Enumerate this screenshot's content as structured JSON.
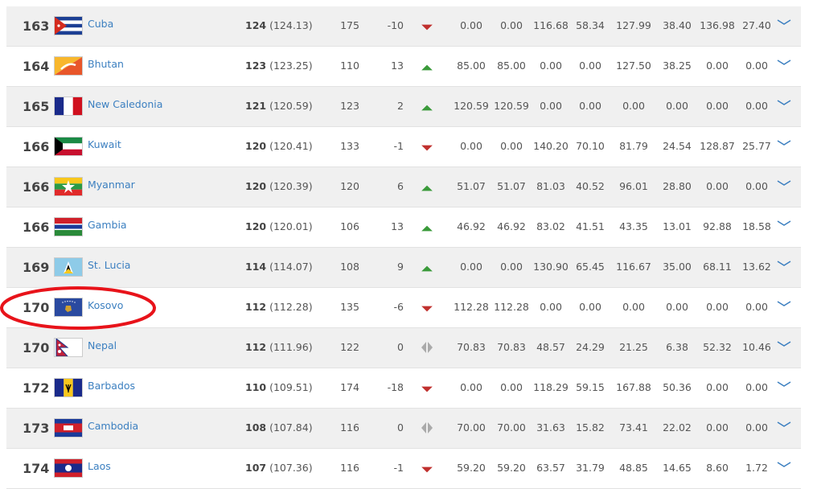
{
  "colors": {
    "up": "#3a9a3a",
    "down": "#c0302e",
    "equal": "#aaaaaa",
    "link": "#3b7fc0",
    "highlight": "#e8131a"
  },
  "rows": [
    {
      "rank": "163",
      "country": "Cuba",
      "flag": "cuba",
      "points": "124",
      "points_exact": "(124.13)",
      "prev": "175",
      "change": "-10",
      "trend": "down",
      "cols": [
        "0.00",
        "0.00",
        "116.68",
        "58.34",
        "127.99",
        "38.40",
        "136.98",
        "27.40"
      ]
    },
    {
      "rank": "164",
      "country": "Bhutan",
      "flag": "bhutan",
      "points": "123",
      "points_exact": "(123.25)",
      "prev": "110",
      "change": "13",
      "trend": "up",
      "cols": [
        "85.00",
        "85.00",
        "0.00",
        "0.00",
        "127.50",
        "38.25",
        "0.00",
        "0.00"
      ]
    },
    {
      "rank": "165",
      "country": "New Caledonia",
      "flag": "france",
      "points": "121",
      "points_exact": "(120.59)",
      "prev": "123",
      "change": "2",
      "trend": "up",
      "cols": [
        "120.59",
        "120.59",
        "0.00",
        "0.00",
        "0.00",
        "0.00",
        "0.00",
        "0.00"
      ]
    },
    {
      "rank": "166",
      "country": "Kuwait",
      "flag": "kuwait",
      "points": "120",
      "points_exact": "(120.41)",
      "prev": "133",
      "change": "-1",
      "trend": "down",
      "cols": [
        "0.00",
        "0.00",
        "140.20",
        "70.10",
        "81.79",
        "24.54",
        "128.87",
        "25.77"
      ]
    },
    {
      "rank": "166",
      "country": "Myanmar",
      "flag": "myanmar",
      "points": "120",
      "points_exact": "(120.39)",
      "prev": "120",
      "change": "6",
      "trend": "up",
      "cols": [
        "51.07",
        "51.07",
        "81.03",
        "40.52",
        "96.01",
        "28.80",
        "0.00",
        "0.00"
      ]
    },
    {
      "rank": "166",
      "country": "Gambia",
      "flag": "gambia",
      "points": "120",
      "points_exact": "(120.01)",
      "prev": "106",
      "change": "13",
      "trend": "up",
      "cols": [
        "46.92",
        "46.92",
        "83.02",
        "41.51",
        "43.35",
        "13.01",
        "92.88",
        "18.58"
      ]
    },
    {
      "rank": "169",
      "country": "St. Lucia",
      "flag": "stlucia",
      "points": "114",
      "points_exact": "(114.07)",
      "prev": "108",
      "change": "9",
      "trend": "up",
      "cols": [
        "0.00",
        "0.00",
        "130.90",
        "65.45",
        "116.67",
        "35.00",
        "68.11",
        "13.62"
      ]
    },
    {
      "rank": "170",
      "country": "Kosovo",
      "flag": "kosovo",
      "points": "112",
      "points_exact": "(112.28)",
      "prev": "135",
      "change": "-6",
      "trend": "down",
      "highlighted": true,
      "cols": [
        "112.28",
        "112.28",
        "0.00",
        "0.00",
        "0.00",
        "0.00",
        "0.00",
        "0.00"
      ]
    },
    {
      "rank": "170",
      "country": "Nepal",
      "flag": "nepal",
      "points": "112",
      "points_exact": "(111.96)",
      "prev": "122",
      "change": "0",
      "trend": "equal",
      "cols": [
        "70.83",
        "70.83",
        "48.57",
        "24.29",
        "21.25",
        "6.38",
        "52.32",
        "10.46"
      ]
    },
    {
      "rank": "172",
      "country": "Barbados",
      "flag": "barbados",
      "points": "110",
      "points_exact": "(109.51)",
      "prev": "174",
      "change": "-18",
      "trend": "down",
      "cols": [
        "0.00",
        "0.00",
        "118.29",
        "59.15",
        "167.88",
        "50.36",
        "0.00",
        "0.00"
      ]
    },
    {
      "rank": "173",
      "country": "Cambodia",
      "flag": "cambodia",
      "points": "108",
      "points_exact": "(107.84)",
      "prev": "116",
      "change": "0",
      "trend": "equal",
      "cols": [
        "70.00",
        "70.00",
        "31.63",
        "15.82",
        "73.41",
        "22.02",
        "0.00",
        "0.00"
      ]
    },
    {
      "rank": "174",
      "country": "Laos",
      "flag": "laos",
      "points": "107",
      "points_exact": "(107.36)",
      "prev": "116",
      "change": "-1",
      "trend": "down",
      "cols": [
        "59.20",
        "59.20",
        "63.57",
        "31.79",
        "48.85",
        "14.65",
        "8.60",
        "1.72"
      ]
    }
  ]
}
